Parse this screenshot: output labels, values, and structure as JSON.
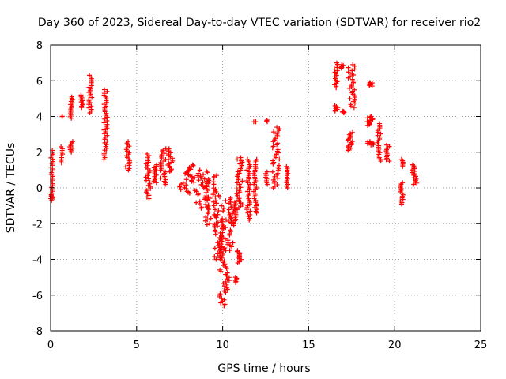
{
  "chart_data": {
    "type": "scatter",
    "title": "Day 360 of 2023, Sidereal Day-to-day VTEC variation (SDTVAR) for receiver rio2",
    "xlabel": "GPS time / hours",
    "ylabel": "SDTVAR / TECUs",
    "xlim": [
      0,
      25
    ],
    "ylim": [
      -8,
      8
    ],
    "xticks": [
      0,
      5,
      10,
      15,
      20,
      25
    ],
    "yticks": [
      -8,
      -6,
      -4,
      -2,
      0,
      2,
      4,
      6,
      8
    ],
    "grid": true,
    "marker": "+",
    "color": "#ff0000",
    "series": [
      {
        "name": "SDTVAR",
        "clusters": [
          {
            "x0": 0.0,
            "x1": 0.15,
            "y0": -0.6,
            "y1": 2.1
          },
          {
            "x0": 0.0,
            "x1": 0.1,
            "y0": -0.7,
            "y1": -0.3
          },
          {
            "x0": 0.6,
            "x1": 0.7,
            "y0": 1.4,
            "y1": 2.3
          },
          {
            "x0": 0.65,
            "x1": 0.7,
            "y0": 4.0,
            "y1": 4.0
          },
          {
            "x0": 1.1,
            "x1": 1.3,
            "y0": 2.0,
            "y1": 2.6
          },
          {
            "x0": 1.1,
            "x1": 1.3,
            "y0": 3.9,
            "y1": 5.1
          },
          {
            "x0": 1.7,
            "x1": 1.9,
            "y0": 4.5,
            "y1": 5.2
          },
          {
            "x0": 2.2,
            "x1": 2.4,
            "y0": 4.2,
            "y1": 6.3
          },
          {
            "x0": 3.1,
            "x1": 3.3,
            "y0": 1.6,
            "y1": 5.5
          },
          {
            "x0": 4.35,
            "x1": 4.6,
            "y0": 1.0,
            "y1": 2.6
          },
          {
            "x0": 5.5,
            "x1": 5.8,
            "y0": -0.6,
            "y1": 1.9
          },
          {
            "x0": 6.0,
            "x1": 6.2,
            "y0": 0.3,
            "y1": 1.3
          },
          {
            "x0": 6.4,
            "x1": 6.7,
            "y0": 0.2,
            "y1": 2.2
          },
          {
            "x0": 6.8,
            "x1": 7.1,
            "y0": 0.9,
            "y1": 2.2
          },
          {
            "x0": 7.5,
            "x1": 8.4,
            "y0": -0.3,
            "y1": 1.3
          },
          {
            "x0": 8.4,
            "x1": 9.2,
            "y0": -1.2,
            "y1": 1.0
          },
          {
            "x0": 9.0,
            "x1": 9.8,
            "y0": -2.2,
            "y1": 0.7
          },
          {
            "x0": 9.5,
            "x1": 10.0,
            "y0": -4.0,
            "y1": -1.5
          },
          {
            "x0": 9.8,
            "x1": 10.4,
            "y0": -6.6,
            "y1": -3.0
          },
          {
            "x0": 9.8,
            "x1": 10.6,
            "y0": -3.5,
            "y1": -0.5
          },
          {
            "x0": 10.6,
            "x1": 10.8,
            "y0": -2.1,
            "y1": -0.8
          },
          {
            "x0": 10.7,
            "x1": 10.85,
            "y0": -5.3,
            "y1": -5.0
          },
          {
            "x0": 10.8,
            "x1": 11.1,
            "y0": -4.2,
            "y1": -3.5
          },
          {
            "x0": 10.8,
            "x1": 11.2,
            "y0": -1.2,
            "y1": 1.7
          },
          {
            "x0": 11.4,
            "x1": 11.6,
            "y0": -1.8,
            "y1": 1.6
          },
          {
            "x0": 11.8,
            "x1": 12.0,
            "y0": 3.7,
            "y1": 3.7
          },
          {
            "x0": 11.8,
            "x1": 12.0,
            "y0": -1.4,
            "y1": 1.6
          },
          {
            "x0": 12.5,
            "x1": 12.6,
            "y0": 3.7,
            "y1": 3.8
          },
          {
            "x0": 12.5,
            "x1": 12.6,
            "y0": 0.2,
            "y1": 0.9
          },
          {
            "x0": 12.9,
            "x1": 13.3,
            "y0": 0.0,
            "y1": 3.4
          },
          {
            "x0": 13.7,
            "x1": 13.8,
            "y0": 0.0,
            "y1": 1.2
          },
          {
            "x0": 16.5,
            "x1": 16.7,
            "y0": 4.3,
            "y1": 4.6
          },
          {
            "x0": 16.5,
            "x1": 16.7,
            "y0": 5.6,
            "y1": 7.0
          },
          {
            "x0": 16.9,
            "x1": 17.1,
            "y0": 4.2,
            "y1": 4.3
          },
          {
            "x0": 16.9,
            "x1": 17.1,
            "y0": 6.7,
            "y1": 6.9
          },
          {
            "x0": 17.2,
            "x1": 17.6,
            "y0": 2.1,
            "y1": 3.1
          },
          {
            "x0": 17.3,
            "x1": 17.7,
            "y0": 4.5,
            "y1": 6.9
          },
          {
            "x0": 18.4,
            "x1": 18.8,
            "y0": 2.4,
            "y1": 2.6
          },
          {
            "x0": 18.4,
            "x1": 18.8,
            "y0": 3.5,
            "y1": 4.0
          },
          {
            "x0": 18.5,
            "x1": 18.8,
            "y0": 5.7,
            "y1": 5.9
          },
          {
            "x0": 19.0,
            "x1": 19.2,
            "y0": 1.5,
            "y1": 3.6
          },
          {
            "x0": 19.5,
            "x1": 19.7,
            "y0": 1.5,
            "y1": 2.4
          },
          {
            "x0": 20.3,
            "x1": 20.5,
            "y0": -0.9,
            "y1": 0.3
          },
          {
            "x0": 20.4,
            "x1": 20.5,
            "y0": 1.2,
            "y1": 1.6
          },
          {
            "x0": 21.0,
            "x1": 21.3,
            "y0": 0.2,
            "y1": 1.3
          }
        ]
      }
    ]
  }
}
